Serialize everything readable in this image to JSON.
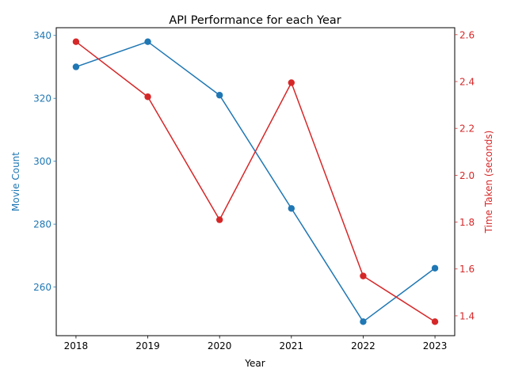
{
  "chart_data": {
    "type": "line",
    "title": "API Performance for each Year",
    "xlabel": "Year",
    "x": [
      2018,
      2019,
      2020,
      2021,
      2022,
      2023
    ],
    "x_ticks": [
      "2018",
      "2019",
      "2020",
      "2021",
      "2022",
      "2023"
    ],
    "series": [
      {
        "name": "Movie Count",
        "axis": "left",
        "color": "#1f77b4",
        "values": [
          330,
          338,
          321,
          285,
          249,
          266
        ]
      },
      {
        "name": "Time Taken (seconds)",
        "axis": "right",
        "color": "#d62728",
        "values": [
          2.57,
          2.335,
          1.81,
          2.395,
          1.57,
          1.375
        ]
      }
    ],
    "y_left": {
      "label": "Movie Count",
      "lim": [
        244.55,
        342.45
      ],
      "ticks": [
        "260",
        "280",
        "300",
        "320",
        "340"
      ],
      "tick_values": [
        260,
        280,
        300,
        320,
        340
      ],
      "color": "#1f77b4"
    },
    "y_right": {
      "label": "Time Taken (seconds)",
      "lim": [
        1.3153,
        2.6298
      ],
      "ticks": [
        "1.4",
        "1.6",
        "1.8",
        "2.0",
        "2.2",
        "2.4",
        "2.6"
      ],
      "tick_values": [
        1.4,
        1.6,
        1.8,
        2.0,
        2.2,
        2.4,
        2.6
      ],
      "color": "#d62728"
    },
    "grid": false,
    "markers": "circle"
  }
}
